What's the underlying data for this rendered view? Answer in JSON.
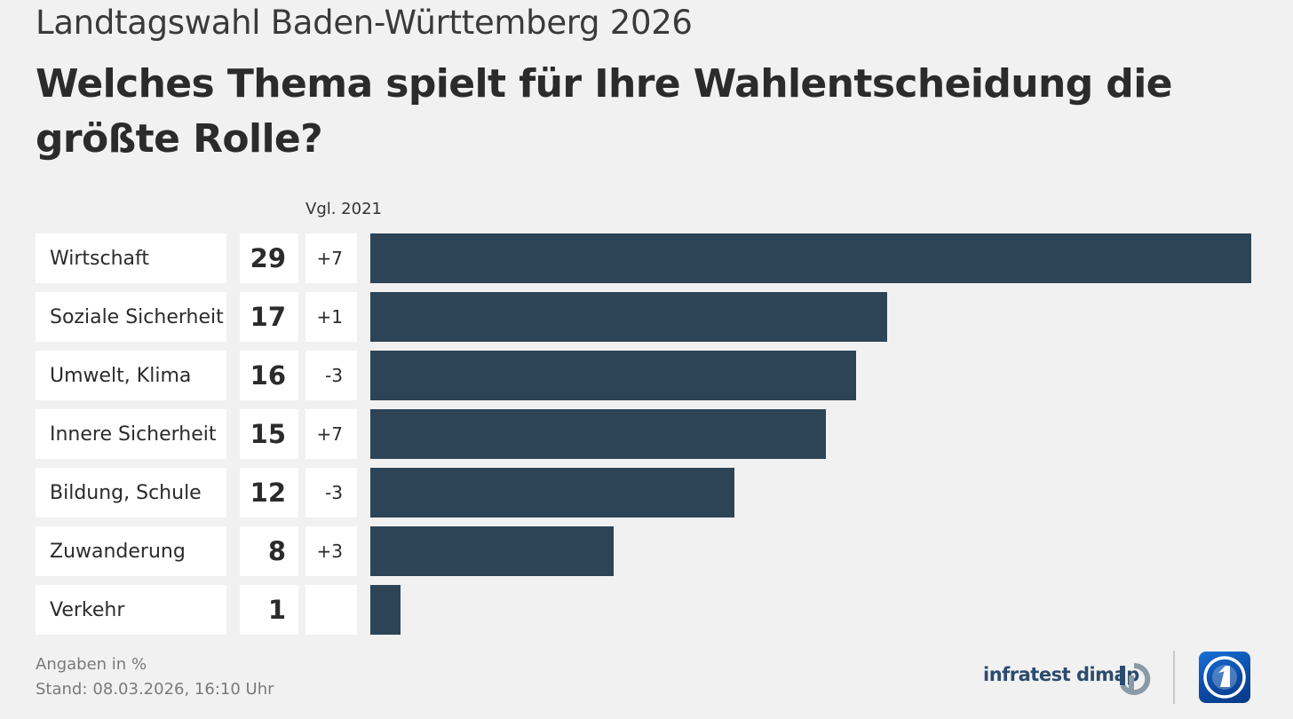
{
  "header": {
    "supertitle": "Landtagswahl Baden-Württemberg 2026",
    "title": "Welches Thema spielt für Ihre Wahlentscheidung die größte Rolle?"
  },
  "table": {
    "change_header": "Vgl. 2021"
  },
  "chart_data": {
    "type": "bar",
    "orientation": "horizontal",
    "categories": [
      "Wirtschaft",
      "Soziale Sicherheit",
      "Umwelt, Klima",
      "Innere Sicherheit",
      "Bildung, Schule",
      "Zuwanderung",
      "Verkehr"
    ],
    "values": [
      29,
      17,
      16,
      15,
      12,
      8,
      1
    ],
    "change_vs_2021": [
      "+7",
      "+1",
      "-3",
      "+7",
      "-3",
      "+3",
      ""
    ],
    "bar_color": "#2c4456",
    "xlim": [
      0,
      29
    ]
  },
  "footer": {
    "unit_note": "Angaben in %",
    "stand_label": "Stand:",
    "stand_value": "08.03.2026, 16:10 Uhr"
  },
  "branding": {
    "institute": "infratest dimap",
    "institute_icon": "infratest-dimap-logo-icon",
    "broadcaster_icon": "ard-logo-icon"
  }
}
